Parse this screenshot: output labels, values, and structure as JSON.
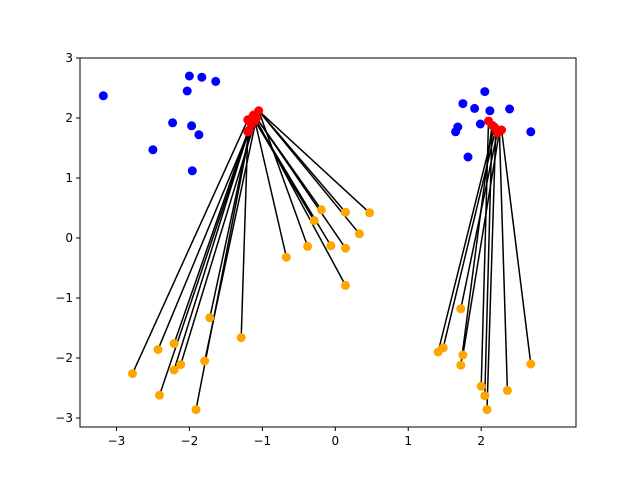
{
  "chart_data": {
    "type": "scatter",
    "title": "",
    "xlabel": "",
    "ylabel": "",
    "xlim": [
      -3.5,
      3.3
    ],
    "ylim": [
      -3.15,
      3.0
    ],
    "grid": false,
    "x_ticks": [
      -3,
      -2,
      -1,
      0,
      1,
      2
    ],
    "x_tick_labels": [
      "−3",
      "−2",
      "−1",
      "0",
      "1",
      "2"
    ],
    "y_ticks": [
      3,
      2,
      1,
      0,
      -1,
      -2,
      -3
    ],
    "y_tick_labels": [
      "3",
      "2",
      "1",
      "0",
      "−1",
      "−2",
      "−3"
    ],
    "colors": {
      "blue_points": "#0000ff",
      "orange_points": "#ffa500",
      "red_points": "#ff0000",
      "lines": "#000000"
    },
    "series": [
      {
        "color": "#0000ff",
        "points": [
          [
            -3.18,
            2.37
          ],
          [
            -2.5,
            1.47
          ],
          [
            -2.23,
            1.92
          ],
          [
            -2.03,
            2.45
          ],
          [
            -2.0,
            2.7
          ],
          [
            -1.83,
            2.68
          ],
          [
            -1.64,
            2.61
          ],
          [
            -1.97,
            1.87
          ],
          [
            -1.87,
            1.72
          ],
          [
            -1.96,
            1.12
          ],
          [
            1.75,
            2.24
          ],
          [
            1.91,
            2.16
          ],
          [
            2.05,
            2.44
          ],
          [
            2.12,
            2.12
          ],
          [
            2.39,
            2.15
          ],
          [
            2.68,
            1.77
          ],
          [
            1.68,
            1.85
          ],
          [
            1.65,
            1.77
          ],
          [
            1.99,
            1.9
          ],
          [
            1.82,
            1.35
          ]
        ]
      },
      {
        "color": "#ffa500",
        "points": [
          [
            -2.78,
            -2.26
          ],
          [
            -2.43,
            -1.86
          ],
          [
            -2.41,
            -2.62
          ],
          [
            -2.21,
            -1.76
          ],
          [
            -2.21,
            -2.2
          ],
          [
            -2.12,
            -2.11
          ],
          [
            -1.91,
            -2.86
          ],
          [
            -1.79,
            -2.05
          ],
          [
            -1.72,
            -1.33
          ],
          [
            -1.29,
            -1.66
          ],
          [
            -0.67,
            -0.32
          ],
          [
            -0.38,
            -0.14
          ],
          [
            -0.29,
            0.29
          ],
          [
            -0.19,
            0.47
          ],
          [
            -0.06,
            -0.13
          ],
          [
            0.14,
            0.43
          ],
          [
            0.14,
            -0.17
          ],
          [
            0.14,
            -0.79
          ],
          [
            0.33,
            0.07
          ],
          [
            0.47,
            0.42
          ],
          [
            1.41,
            -1.9
          ],
          [
            1.48,
            -1.83
          ],
          [
            1.72,
            -1.18
          ],
          [
            1.72,
            -2.12
          ],
          [
            1.75,
            -1.95
          ],
          [
            2.0,
            -2.47
          ],
          [
            2.05,
            -2.63
          ],
          [
            2.08,
            -2.86
          ],
          [
            2.36,
            -2.54
          ],
          [
            2.68,
            -2.1
          ]
        ]
      },
      {
        "color": "#ff0000",
        "points": [
          [
            -1.2,
            1.97
          ],
          [
            -1.12,
            2.05
          ],
          [
            -1.05,
            2.12
          ],
          [
            -1.1,
            1.95
          ],
          [
            -1.15,
            1.9
          ],
          [
            -1.18,
            1.8
          ],
          [
            -1.08,
            2.0
          ],
          [
            -1.2,
            1.77
          ],
          [
            -1.13,
            2.03
          ],
          [
            2.1,
            1.95
          ],
          [
            2.15,
            1.88
          ],
          [
            2.2,
            1.82
          ],
          [
            2.25,
            1.78
          ],
          [
            2.28,
            1.8
          ],
          [
            2.18,
            1.85
          ],
          [
            2.22,
            1.75
          ]
        ]
      }
    ],
    "connections": [
      [
        [
          -2.78,
          -2.26
        ],
        [
          -1.2,
          1.97
        ]
      ],
      [
        [
          -2.43,
          -1.86
        ],
        [
          -1.18,
          1.8
        ]
      ],
      [
        [
          -2.41,
          -2.62
        ],
        [
          -1.15,
          1.9
        ]
      ],
      [
        [
          -2.21,
          -1.76
        ],
        [
          -1.2,
          1.77
        ]
      ],
      [
        [
          -2.21,
          -2.2
        ],
        [
          -1.12,
          2.05
        ]
      ],
      [
        [
          -2.12,
          -2.11
        ],
        [
          -1.1,
          1.95
        ]
      ],
      [
        [
          -1.91,
          -2.86
        ],
        [
          -1.13,
          2.03
        ]
      ],
      [
        [
          -1.79,
          -2.05
        ],
        [
          -1.08,
          2.0
        ]
      ],
      [
        [
          -1.72,
          -1.33
        ],
        [
          -1.15,
          1.9
        ]
      ],
      [
        [
          -1.29,
          -1.66
        ],
        [
          -1.2,
          1.77
        ]
      ],
      [
        [
          -0.67,
          -0.32
        ],
        [
          -1.12,
          2.05
        ]
      ],
      [
        [
          -0.38,
          -0.14
        ],
        [
          -1.05,
          2.12
        ]
      ],
      [
        [
          -0.29,
          0.29
        ],
        [
          -1.1,
          1.95
        ]
      ],
      [
        [
          -0.19,
          0.47
        ],
        [
          -1.08,
          2.0
        ]
      ],
      [
        [
          -0.06,
          -0.13
        ],
        [
          -1.13,
          2.03
        ]
      ],
      [
        [
          0.14,
          0.43
        ],
        [
          -1.05,
          2.12
        ]
      ],
      [
        [
          0.14,
          -0.17
        ],
        [
          -1.08,
          2.0
        ]
      ],
      [
        [
          0.14,
          -0.79
        ],
        [
          -1.12,
          2.05
        ]
      ],
      [
        [
          0.33,
          0.07
        ],
        [
          -1.05,
          2.12
        ]
      ],
      [
        [
          0.47,
          0.42
        ],
        [
          -1.05,
          2.12
        ]
      ],
      [
        [
          1.41,
          -1.9
        ],
        [
          2.18,
          1.85
        ]
      ],
      [
        [
          1.48,
          -1.83
        ],
        [
          2.2,
          1.82
        ]
      ],
      [
        [
          1.72,
          -1.18
        ],
        [
          2.22,
          1.75
        ]
      ],
      [
        [
          1.72,
          -2.12
        ],
        [
          2.15,
          1.88
        ]
      ],
      [
        [
          1.75,
          -1.95
        ],
        [
          2.25,
          1.78
        ]
      ],
      [
        [
          2.0,
          -2.47
        ],
        [
          2.1,
          1.95
        ]
      ],
      [
        [
          2.05,
          -2.63
        ],
        [
          2.15,
          1.88
        ]
      ],
      [
        [
          2.08,
          -2.86
        ],
        [
          2.2,
          1.82
        ]
      ],
      [
        [
          2.36,
          -2.54
        ],
        [
          2.25,
          1.78
        ]
      ],
      [
        [
          2.68,
          -2.1
        ],
        [
          2.28,
          1.8
        ]
      ]
    ]
  }
}
